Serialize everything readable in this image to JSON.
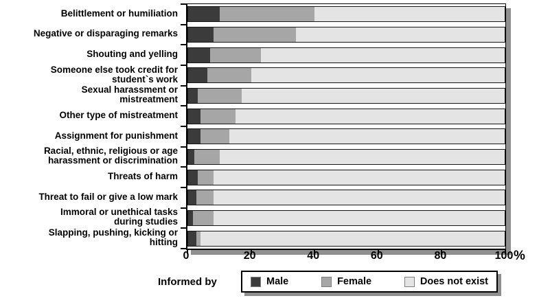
{
  "chart_data": {
    "type": "bar",
    "orientation": "horizontal",
    "stacked": true,
    "percent_scale": true,
    "title": "",
    "xlabel": "%",
    "xlim": [
      0,
      100
    ],
    "x_ticks": [
      0,
      20,
      40,
      60,
      80,
      100
    ],
    "grid": false,
    "legend_position": "bottom",
    "legend_title": "Informed by",
    "categories": [
      "Belittlement or humiliation",
      "Negative or disparaging remarks",
      "Shouting and yelling",
      "Someone else took credit for\nstudent`s work",
      "Sexual harassment or\nmistreatment",
      "Other type of mistreatment",
      "Assignment for punishment",
      "Racial, ethnic, religious or age\nharassment or discrimination",
      "Threats of harm",
      "Threat to fail or give a low mark",
      "Immoral or unethical tasks\nduring studies",
      "Slapping, pushing, kicking or\nhitting"
    ],
    "series": [
      {
        "name": "Male",
        "color": "#3b3b3b",
        "values": [
          10,
          8,
          7,
          6,
          3,
          4,
          4,
          2,
          3,
          2.5,
          1.5,
          2.5
        ]
      },
      {
        "name": "Female",
        "color": "#a6a6a6",
        "values": [
          30,
          26,
          16,
          14,
          14,
          11,
          9,
          8,
          5,
          5.5,
          6.5,
          1.5
        ]
      },
      {
        "name": "Does not exist",
        "color": "#e4e4e4",
        "values": [
          60,
          66,
          77,
          80,
          83,
          85,
          87,
          90,
          92,
          92,
          92,
          96
        ]
      }
    ],
    "colors": {
      "bar_outline": "#161616",
      "frame_border": "#000000",
      "shadow": "#8f8f8f",
      "background": "#ffffff"
    }
  }
}
